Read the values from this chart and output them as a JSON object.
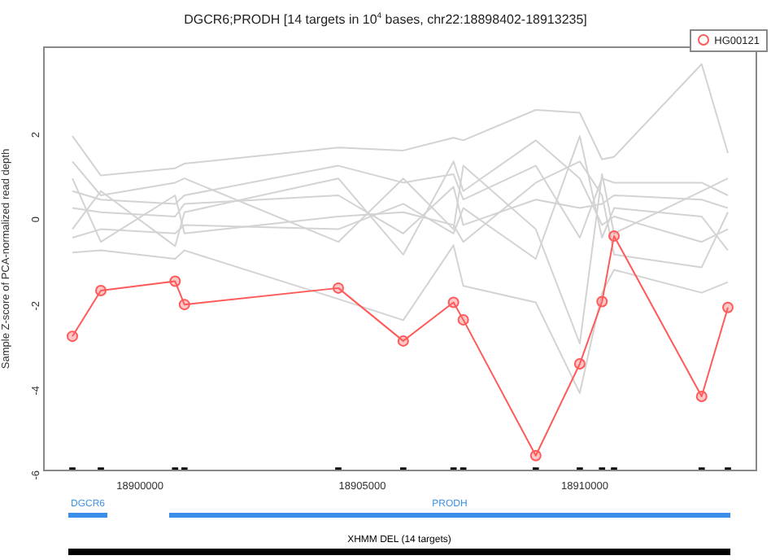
{
  "chart_data": [
    {
      "type": "line",
      "title": "DGCR6;PRODH [14 targets in 10$^{4}$ bases, chr22:18898402-18913235]",
      "ylabel": "Sample Z-score of PCA-normalized read depth",
      "x": [
        18898480,
        18899120,
        18900790,
        18901000,
        18904460,
        18905920,
        18907050,
        18907270,
        18908900,
        18909890,
        18910390,
        18910660,
        18912630,
        18913220
      ],
      "xlim": [
        18897840,
        18913860
      ],
      "xticks": [
        18900000,
        18905000,
        18910000
      ],
      "ylim": [
        -6,
        4
      ],
      "yticks": [
        -6,
        -4,
        -2,
        0,
        2
      ],
      "grid": false,
      "legend": "top right",
      "series": [
        {
          "color": "#d3d3d3",
          "marker": "none",
          "values": [
            1.9,
            0.97,
            1.14,
            1.25,
            1.63,
            1.56,
            1.86,
            1.8,
            2.52,
            2.45,
            1.35,
            1.41,
            3.6,
            1.5
          ]
        },
        {
          "color": "#d3d3d3",
          "marker": "none",
          "values": [
            -0.85,
            -0.8,
            -1.0,
            -0.8,
            -1.95,
            -2.45,
            -0.68,
            -1.64,
            -2.03,
            -4.17,
            -1.8,
            -1.26,
            -1.8,
            -1.55
          ]
        },
        {
          "color": "#d3d3d3",
          "marker": "none",
          "values": [
            0.6,
            0.4,
            0.3,
            0.5,
            1.2,
            0.8,
            1.0,
            0.4,
            1.2,
            -0.5,
            0.9,
            0.8,
            0.8,
            0.5
          ]
        },
        {
          "color": "#d3d3d3",
          "marker": "none",
          "values": [
            -0.5,
            -0.3,
            -0.4,
            -0.2,
            -0.3,
            0.3,
            -0.4,
            0.2,
            -1.0,
            1.9,
            -0.5,
            0.2,
            0.0,
            -0.8
          ]
        },
        {
          "color": "#d3d3d3",
          "marker": "none",
          "values": [
            0.2,
            0.1,
            0.0,
            0.3,
            0.5,
            -0.4,
            0.7,
            -0.2,
            0.4,
            0.2,
            0.3,
            0.5,
            0.4,
            0.2
          ]
        },
        {
          "color": "#d3d3d3",
          "marker": "none",
          "values": [
            1.3,
            0.5,
            0.8,
            0.9,
            -0.6,
            0.9,
            -0.3,
            1.2,
            -0.3,
            -3.0,
            1.0,
            -0.4,
            0.6,
            0.9
          ]
        },
        {
          "color": "#d3d3d3",
          "marker": "none",
          "values": [
            -0.3,
            0.6,
            -0.7,
            0.1,
            0.9,
            -0.9,
            1.3,
            0.6,
            1.8,
            0.9,
            -0.2,
            0.0,
            -0.6,
            -0.3
          ]
        },
        {
          "color": "#d3d3d3",
          "marker": "none",
          "values": [
            0.9,
            -0.6,
            0.5,
            -0.4,
            0.0,
            0.1,
            -0.2,
            -0.6,
            0.8,
            1.3,
            0.5,
            -0.9,
            -1.2,
            0.1
          ]
        },
        {
          "name": "HG00121",
          "color": "#ff5a5a",
          "marker": "circle",
          "values": [
            -2.83,
            -1.75,
            -1.53,
            -2.08,
            -1.69,
            -2.94,
            -2.03,
            -2.44,
            -5.65,
            -3.48,
            -2.01,
            -0.46,
            -4.25,
            -2.15
          ]
        },
        {
          "type": "scatter",
          "color": "#000000",
          "marker": "square",
          "values": [
            -6,
            -6,
            -6,
            -6,
            -6,
            -6,
            -6,
            -6,
            -6,
            -6,
            -6,
            -6,
            -6,
            -6
          ]
        }
      ]
    },
    {
      "type": "other",
      "annotations": [
        "DGCR6",
        "PRODH",
        "XHMM DEL (14 targets)"
      ]
    }
  ]
}
